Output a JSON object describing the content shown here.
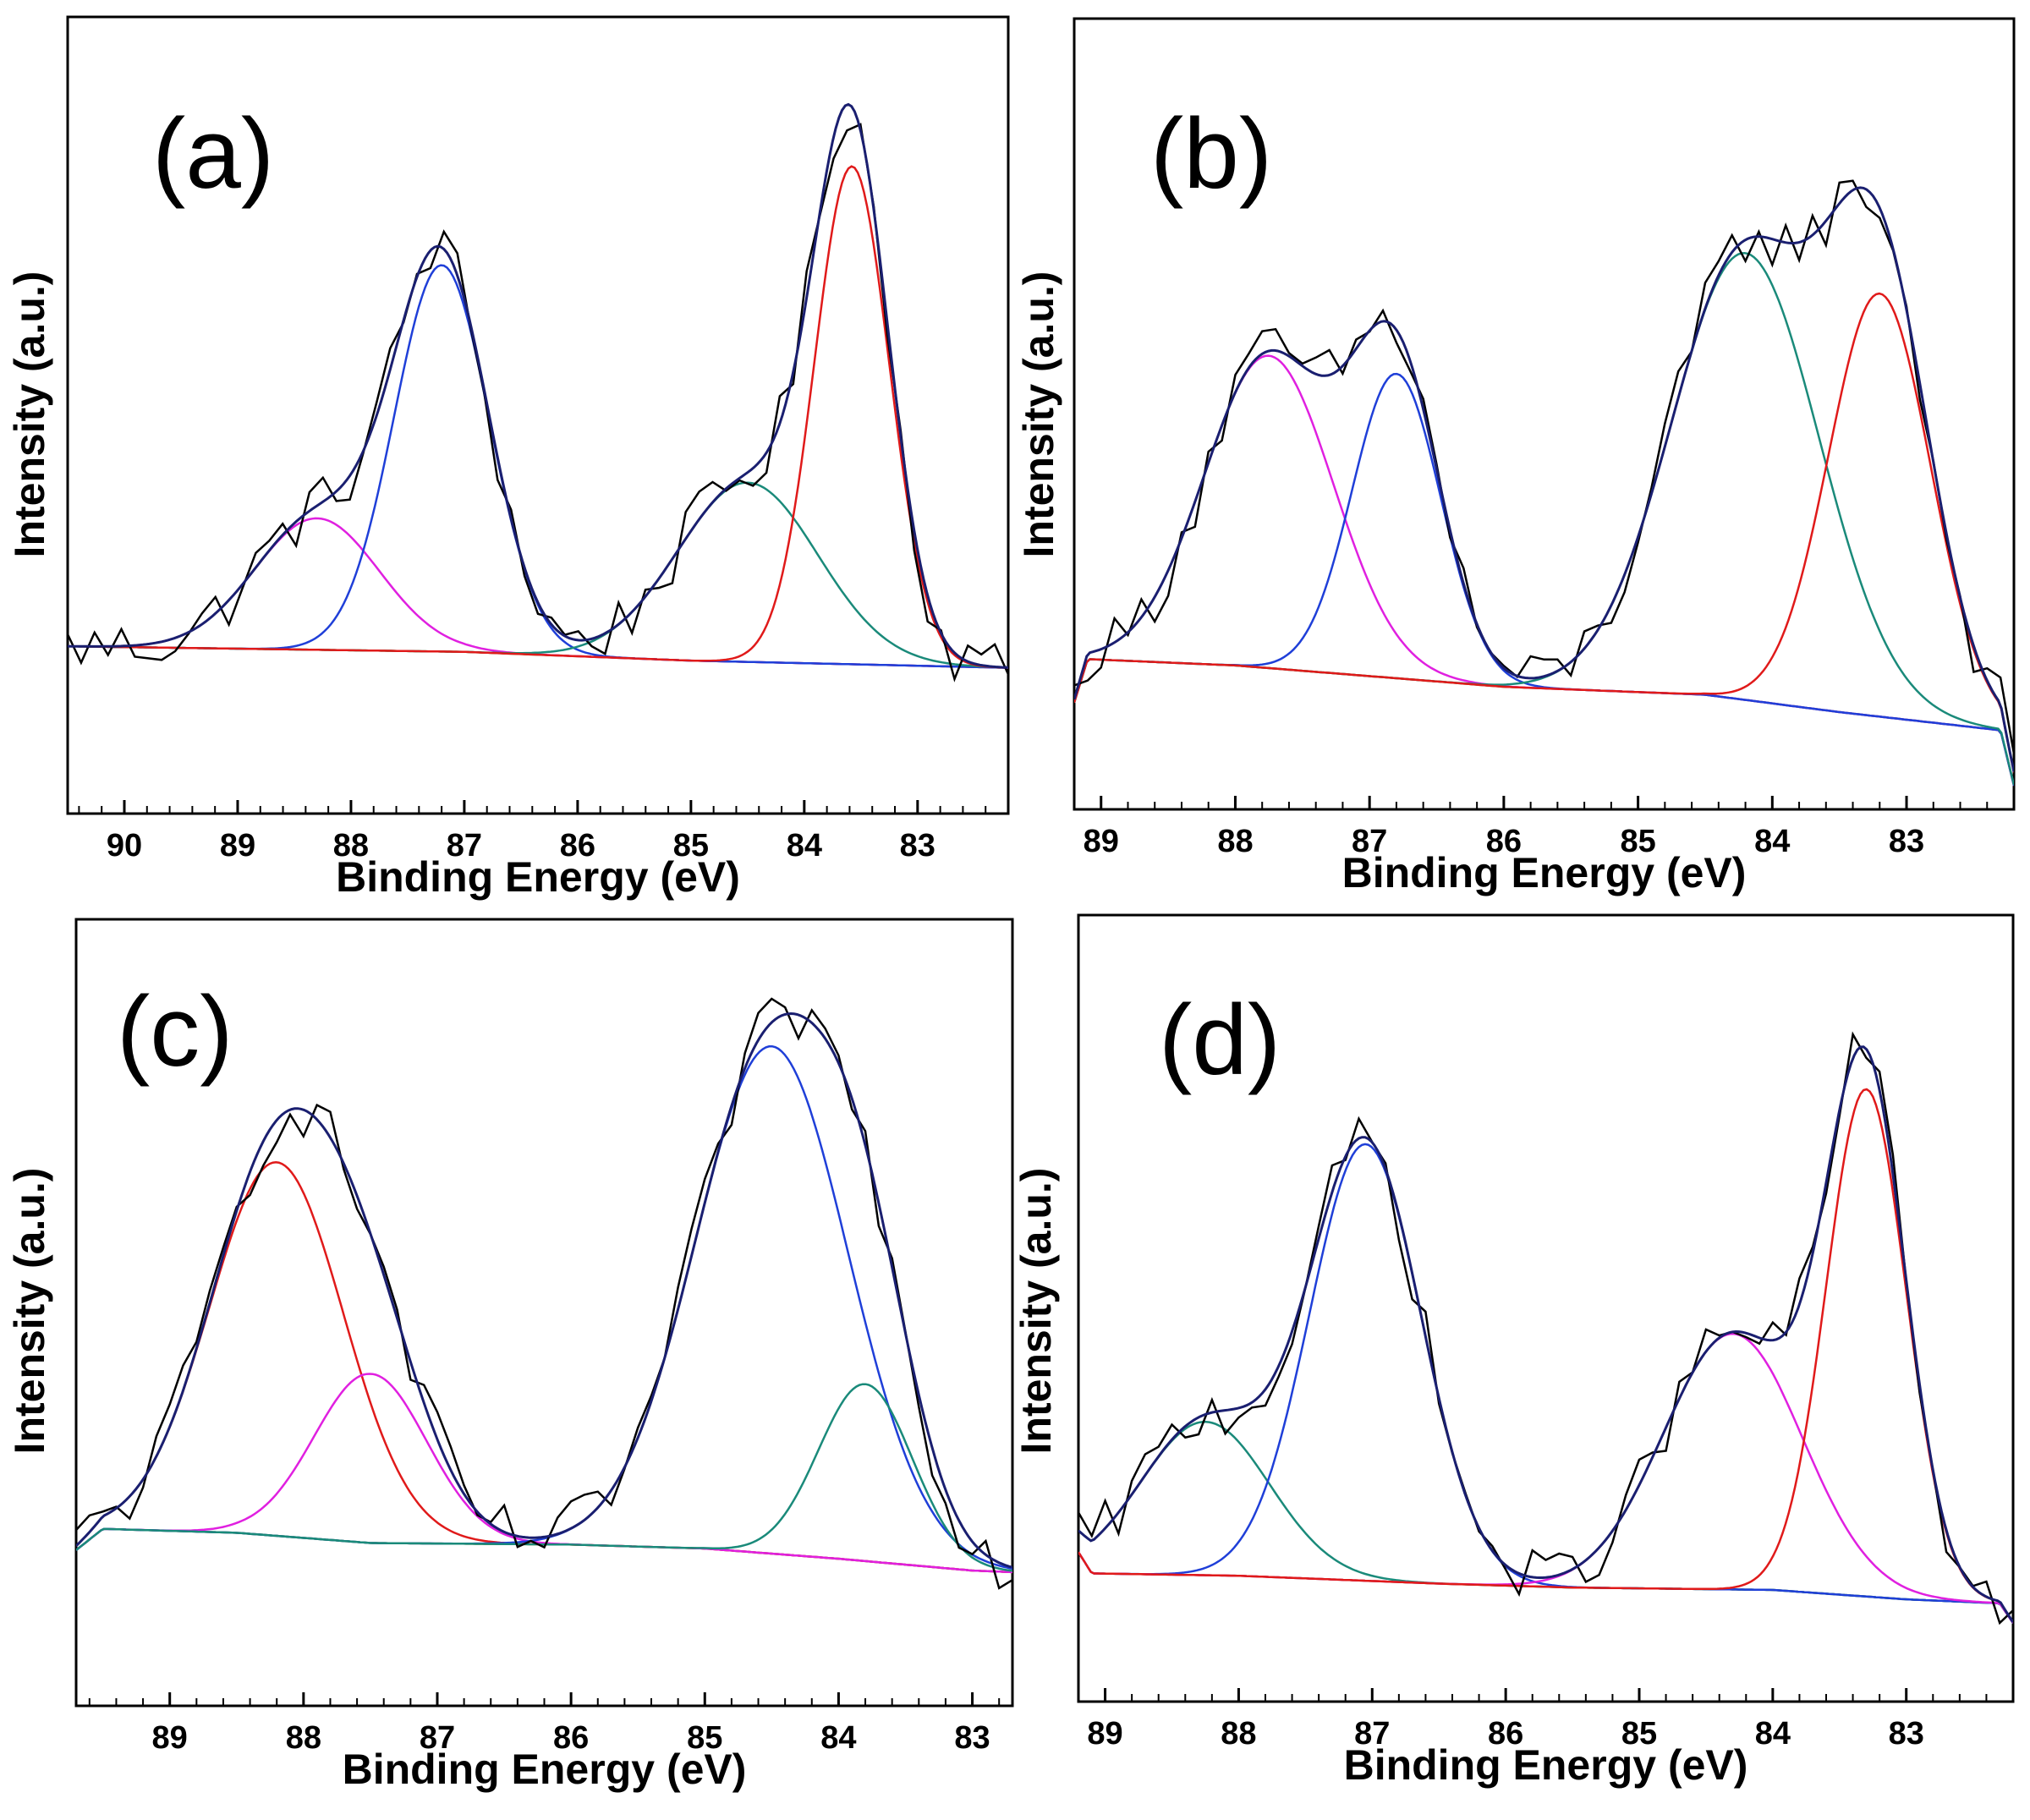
{
  "chart_data": [
    {
      "type": "line",
      "panel_label": "(a)",
      "xlabel": "Binding Energy (eV)",
      "ylabel": "Intensity (a.u.)",
      "x_reversed": true,
      "xlim": [
        90.5,
        82.2
      ],
      "ylim": [
        0,
        100
      ],
      "xticks": [
        90,
        89,
        88,
        87,
        86,
        85,
        84,
        83
      ],
      "grid": false,
      "baseline": {
        "color": "#7b7b00",
        "points": [
          [
            90.5,
            21
          ],
          [
            87,
            20.3
          ],
          [
            85,
            19.2
          ],
          [
            82.2,
            18.3
          ]
        ]
      },
      "components": [
        {
          "color": "#e020e0",
          "center": 88.3,
          "height": 16.5,
          "sigma": 0.55
        },
        {
          "color": "#1f3fd8",
          "center": 87.2,
          "height": 48.5,
          "sigma": 0.42
        },
        {
          "color": "#1a8a7a",
          "center": 84.5,
          "height": 22.5,
          "sigma": 0.62
        },
        {
          "color": "#e01a1a",
          "center": 83.58,
          "height": 62.5,
          "sigma": 0.33
        }
      ],
      "envelope_color": "#1a1f70",
      "raw_color": "#000000"
    },
    {
      "type": "line",
      "panel_label": "(b)",
      "xlabel": "Binding Energy (eV)",
      "ylabel": "Intensity (a.u.)",
      "x_reversed": true,
      "xlim": [
        89.2,
        82.2
      ],
      "ylim": [
        0,
        100
      ],
      "xticks": [
        89,
        88,
        87,
        86,
        85,
        84,
        83
      ],
      "grid": false,
      "baseline": {
        "color": "#7b7b00",
        "points": [
          [
            89.2,
            13.5
          ],
          [
            89.1,
            19
          ],
          [
            88,
            18.2
          ],
          [
            86,
            15.5
          ],
          [
            84.5,
            14.5
          ],
          [
            83.5,
            12.3
          ],
          [
            82.3,
            10
          ],
          [
            82.2,
            3
          ]
        ]
      },
      "components": [
        {
          "color": "#e020e0",
          "center": 87.75,
          "height": 39.5,
          "sigma": 0.48
        },
        {
          "color": "#1f3fd8",
          "center": 86.8,
          "height": 38.5,
          "sigma": 0.33
        },
        {
          "color": "#1a8a7a",
          "center": 84.2,
          "height": 56.5,
          "sigma": 0.55
        },
        {
          "color": "#e01a1a",
          "center": 83.2,
          "height": 53.5,
          "sigma": 0.38
        }
      ],
      "envelope_color": "#1a1f70",
      "raw_color": "#000000"
    },
    {
      "type": "line",
      "panel_label": "(c)",
      "xlabel": "Binding Energy (eV)",
      "ylabel": "Intensity (a.u.)",
      "x_reversed": true,
      "xlim": [
        89.7,
        82.7
      ],
      "ylim": [
        0,
        100
      ],
      "xticks": [
        89,
        88,
        87,
        86,
        85,
        84,
        83
      ],
      "grid": false,
      "baseline": {
        "color": "#7b7b00",
        "points": [
          [
            89.7,
            19.8
          ],
          [
            89.5,
            22.5
          ],
          [
            88.5,
            22
          ],
          [
            87.5,
            20.7
          ],
          [
            86,
            20.5
          ],
          [
            85,
            20
          ],
          [
            84,
            18.7
          ],
          [
            83,
            17.2
          ],
          [
            82.7,
            17
          ]
        ]
      },
      "components": [
        {
          "color": "#e01a1a",
          "center": 88.2,
          "height": 47.5,
          "sigma": 0.5
        },
        {
          "color": "#e020e0",
          "center": 87.5,
          "height": 21.5,
          "sigma": 0.42
        },
        {
          "color": "#1f3fd8",
          "center": 84.5,
          "height": 64.5,
          "sigma": 0.57
        },
        {
          "color": "#1a8a7a",
          "center": 83.8,
          "height": 22.5,
          "sigma": 0.35
        }
      ],
      "envelope_color": "#1a1f70",
      "raw_color": "#000000"
    },
    {
      "type": "line",
      "panel_label": "(d)",
      "xlabel": "Binding Energy (eV)",
      "ylabel": "Intensity (a.u.)",
      "x_reversed": true,
      "xlim": [
        89.2,
        82.2
      ],
      "ylim": [
        0,
        100
      ],
      "xticks": [
        89,
        88,
        87,
        86,
        85,
        84,
        83
      ],
      "grid": false,
      "baseline": {
        "color": "#7b7b00",
        "points": [
          [
            89.2,
            19
          ],
          [
            89.1,
            16.3
          ],
          [
            88,
            16
          ],
          [
            86.5,
            15
          ],
          [
            85.5,
            14.5
          ],
          [
            84,
            14.2
          ],
          [
            83,
            13
          ],
          [
            82.3,
            12.5
          ],
          [
            82.2,
            10
          ]
        ]
      },
      "components": [
        {
          "color": "#1a8a7a",
          "center": 88.25,
          "height": 19.5,
          "sigma": 0.48
        },
        {
          "color": "#1f3fd8",
          "center": 87.05,
          "height": 55.5,
          "sigma": 0.42
        },
        {
          "color": "#e020e0",
          "center": 84.3,
          "height": 32.5,
          "sigma": 0.52
        },
        {
          "color": "#e01a1a",
          "center": 83.3,
          "height": 64.5,
          "sigma": 0.3
        }
      ],
      "envelope_color": "#1a1f70",
      "raw_color": "#000000"
    }
  ]
}
